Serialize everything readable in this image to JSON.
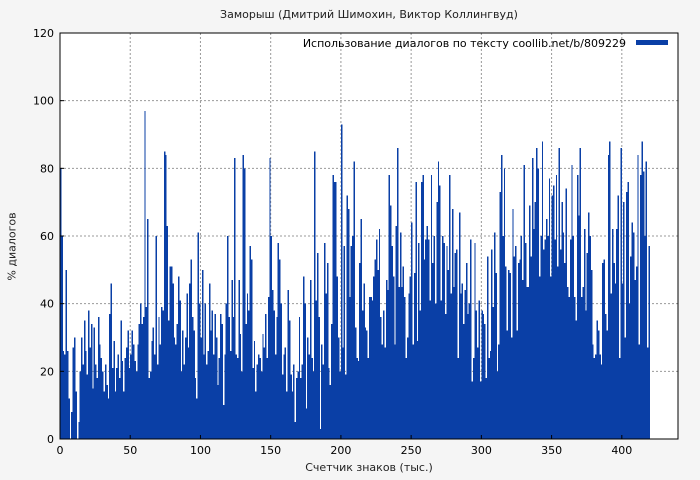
{
  "chart_data": {
    "type": "bar",
    "title": "Заморыш (Дмитрий Шимохин, Виктор Коллингвуд)",
    "xlabel": "Счетчик знаков (тыс.)",
    "ylabel": "% диалогов",
    "xlim": [
      0,
      440
    ],
    "ylim": [
      0,
      120
    ],
    "xticks": [
      0,
      50,
      100,
      150,
      200,
      250,
      300,
      350,
      400
    ],
    "yticks": [
      0,
      20,
      40,
      60,
      80,
      100,
      120
    ],
    "grid": true,
    "legend_position": "top-right",
    "series": [
      {
        "name": "Использование диалогов по тексту coollib.net/b/809229",
        "color": "#0a3fa6",
        "x_step": 1,
        "values": [
          80,
          60,
          26,
          25,
          50,
          26,
          12,
          0,
          8,
          27,
          30,
          14,
          0,
          5,
          20,
          30,
          22,
          35,
          26,
          19,
          38,
          27,
          34,
          15,
          33,
          22,
          18,
          36,
          28,
          24,
          20,
          14,
          22,
          16,
          12,
          37,
          46,
          21,
          29,
          14,
          21,
          25,
          18,
          35,
          23,
          14,
          24,
          27,
          32,
          21,
          25,
          32,
          28,
          23,
          20,
          28,
          34,
          40,
          34,
          36,
          97,
          39,
          65,
          18,
          20,
          29,
          33,
          25,
          60,
          22,
          36,
          28,
          39,
          38,
          85,
          84,
          63,
          35,
          51,
          51,
          46,
          30,
          28,
          34,
          48,
          41,
          20,
          32,
          22,
          30,
          43,
          27,
          46,
          53,
          36,
          32,
          18,
          12,
          61,
          40,
          30,
          50,
          25,
          40,
          22,
          26,
          46,
          32,
          38,
          25,
          37,
          30,
          16,
          24,
          37,
          34,
          10,
          25,
          40,
          60,
          36,
          26,
          47,
          36,
          83,
          25,
          24,
          47,
          31,
          20,
          84,
          80,
          34,
          43,
          38,
          57,
          53,
          21,
          29,
          14,
          22,
          25,
          24,
          20,
          31,
          27,
          37,
          24,
          42,
          83,
          60,
          44,
          38,
          25,
          36,
          58,
          53,
          40,
          19,
          25,
          27,
          14,
          44,
          35,
          19,
          14,
          22,
          5,
          18,
          20,
          36,
          18,
          22,
          48,
          40,
          9,
          30,
          25,
          47,
          24,
          20,
          85,
          41,
          55,
          36,
          3,
          28,
          22,
          58,
          43,
          52,
          21,
          16,
          34,
          78,
          76,
          76,
          48,
          30,
          20,
          93,
          27,
          57,
          19,
          72,
          68,
          42,
          57,
          60,
          82,
          33,
          24,
          23,
          52,
          65,
          38,
          46,
          33,
          32,
          24,
          42,
          42,
          41,
          48,
          53,
          59,
          50,
          62,
          36,
          28,
          38,
          27,
          47,
          44,
          78,
          69,
          57,
          48,
          28,
          63,
          86,
          45,
          61,
          45,
          51,
          42,
          24,
          30,
          43,
          48,
          64,
          28,
          49,
          76,
          29,
          58,
          38,
          76,
          78,
          53,
          59,
          63,
          59,
          41,
          78,
          52,
          60,
          40,
          70,
          82,
          75,
          41,
          60,
          58,
          37,
          57,
          50,
          78,
          43,
          68,
          45,
          55,
          56,
          24,
          67,
          43,
          46,
          34,
          44,
          52,
          37,
          40,
          59,
          17,
          24,
          58,
          38,
          27,
          41,
          17,
          38,
          37,
          34,
          18,
          54,
          24,
          26,
          56,
          39,
          61,
          49,
          20,
          28,
          73,
          84,
          60,
          80,
          51,
          32,
          50,
          49,
          30,
          68,
          54,
          57,
          32,
          52,
          53,
          60,
          47,
          81,
          58,
          45,
          45,
          69,
          54,
          83,
          62,
          70,
          86,
          80,
          48,
          60,
          88,
          56,
          59,
          65,
          60,
          77,
          48,
          72,
          75,
          59,
          78,
          51,
          86,
          56,
          70,
          61,
          52,
          74,
          45,
          42,
          59,
          81,
          60,
          42,
          35,
          78,
          66,
          86,
          42,
          45,
          62,
          38,
          55,
          67,
          60,
          50,
          28,
          24,
          25,
          35,
          32,
          25,
          22,
          52,
          53,
          37,
          32,
          84,
          88,
          43,
          62,
          52,
          46,
          62,
          72,
          24,
          86,
          46,
          70,
          30,
          73,
          76,
          40,
          54,
          64,
          61,
          47,
          51,
          84,
          28,
          78,
          88,
          79,
          60,
          82,
          27,
          57
        ]
      }
    ]
  }
}
